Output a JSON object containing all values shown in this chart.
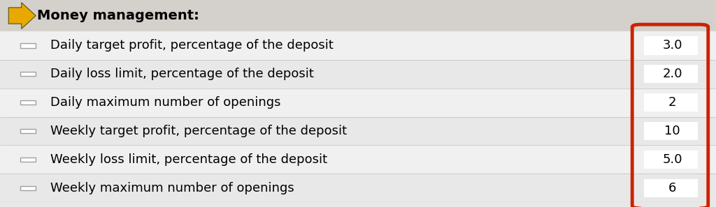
{
  "title": "Money management:",
  "rows": [
    {
      "label": "Daily target profit, percentage of the deposit",
      "value": "3.0"
    },
    {
      "label": "Daily loss limit, percentage of the deposit",
      "value": "2.0"
    },
    {
      "label": "Daily maximum number of openings",
      "value": "2"
    },
    {
      "label": "Weekly target profit, percentage of the deposit",
      "value": "10"
    },
    {
      "label": "Weekly loss limit, percentage of the deposit",
      "value": "5.0"
    },
    {
      "label": "Weekly maximum number of openings",
      "value": "6"
    }
  ],
  "bg_color_odd": "#e8e8e8",
  "bg_color_even": "#f0f0f0",
  "header_bg": "#d4d0cc",
  "text_color": "#000000",
  "value_box_outline": "#cc2200",
  "value_box_fill": "#ffffff",
  "checkbox_color": "#a0a0a0",
  "header_icon_gold": "#e8a800",
  "header_icon_dark": "#555500",
  "sep_color": "#c0c0c0",
  "label_font_size": 13,
  "header_font_size": 14,
  "value_font_size": 13,
  "fig_width": 10.24,
  "fig_height": 2.97
}
